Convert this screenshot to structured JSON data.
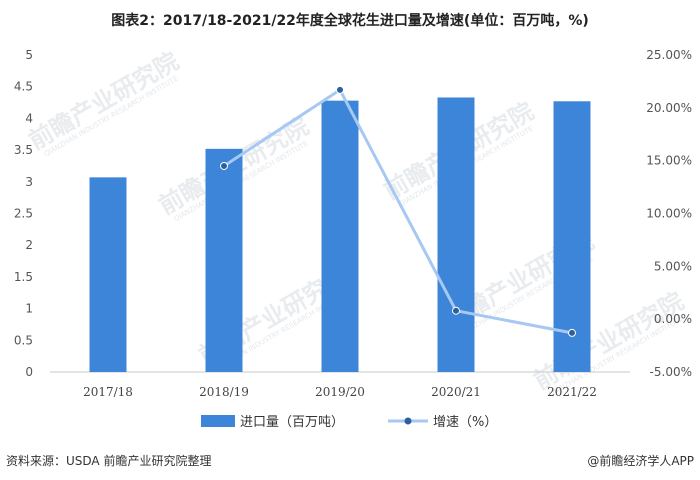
{
  "chart_data": {
    "type": "bar",
    "title": "图表2：2017/18-2021/22年度全球花生进口量及增速(单位：百万吨，%)",
    "categories": [
      "2017/18",
      "2018/19",
      "2019/20",
      "2020/21",
      "2021/22"
    ],
    "series": [
      {
        "name": "进口量（百万吨）",
        "type": "bar",
        "axis": "left",
        "color": "#3d85d8",
        "values": [
          3.07,
          3.52,
          4.28,
          4.33,
          4.27
        ]
      },
      {
        "name": "增速（%）",
        "type": "line",
        "axis": "right",
        "color": "#a6c8f2",
        "marker_color": "#2e5f9e",
        "values": [
          null,
          14.5,
          21.7,
          0.8,
          -1.3
        ]
      }
    ],
    "y_left": {
      "min": 0,
      "max": 5,
      "ticks": [
        "0",
        "0.5",
        "1",
        "1.5",
        "2",
        "2.5",
        "3",
        "3.5",
        "4",
        "4.5",
        "5"
      ]
    },
    "y_right": {
      "min": -5,
      "max": 25,
      "ticks": [
        "-5.00%",
        "0.00%",
        "5.00%",
        "10.00%",
        "15.00%",
        "20.00%",
        "25.00%"
      ]
    },
    "legend_position": "bottom",
    "grid": false
  },
  "watermark": {
    "text": "前瞻产业研究院",
    "sub": "QIANZHAN INDUSTRY RESEARCH INSTITUTE"
  },
  "footer": {
    "source": "资料来源：USDA 前瞻产业研究院整理",
    "brand": "@前瞻经济学人APP"
  }
}
